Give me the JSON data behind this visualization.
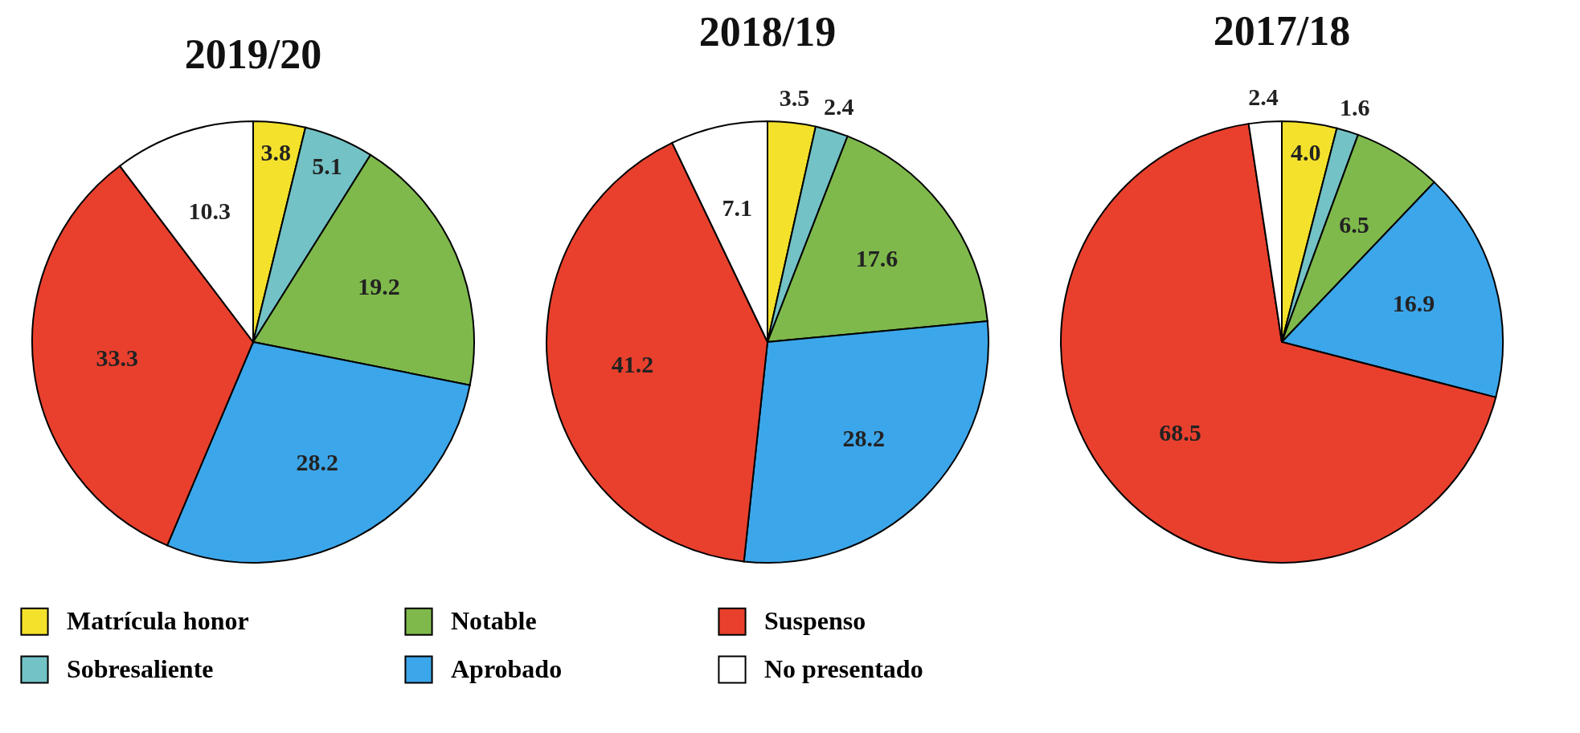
{
  "chart_data": [
    {
      "type": "pie",
      "title": "2019/20",
      "categories": [
        "Matrícula honor",
        "Sobresaliente",
        "Notable",
        "Aprobado",
        "Suspenso",
        "No presentado"
      ],
      "values": [
        3.8,
        5.1,
        19.2,
        28.2,
        33.3,
        10.3
      ],
      "colors": [
        "#f3e12c",
        "#72c2c6",
        "#7fb94c",
        "#3ca6ea",
        "#e8402d",
        "#ffffff"
      ],
      "data_labels": true,
      "legend": "bottom"
    },
    {
      "type": "pie",
      "title": "2018/19",
      "categories": [
        null,
        null,
        null,
        null,
        null,
        null
      ],
      "values": [
        3.5,
        2.4,
        17.6,
        28.2,
        41.2,
        7.1
      ],
      "colors": [
        "#f3e12c",
        "#72c2c6",
        "#7fb94c",
        "#3ca6ea",
        "#e8402d",
        "#ffffff"
      ],
      "data_labels": true
    },
    {
      "type": "pie",
      "title": "2017/18",
      "categories": [
        null,
        null,
        null,
        null,
        null,
        null
      ],
      "values": [
        4.0,
        1.6,
        6.5,
        16.9,
        68.5,
        2.4
      ],
      "value_labels": [
        "4.0",
        "1.6",
        "6.5",
        "16.9",
        "68.5",
        "2.4"
      ],
      "colors": [
        "#f3e12c",
        "#72c2c6",
        "#7fb94c",
        "#3ca6ea",
        "#e8402d",
        "#ffffff"
      ]
    }
  ]
}
